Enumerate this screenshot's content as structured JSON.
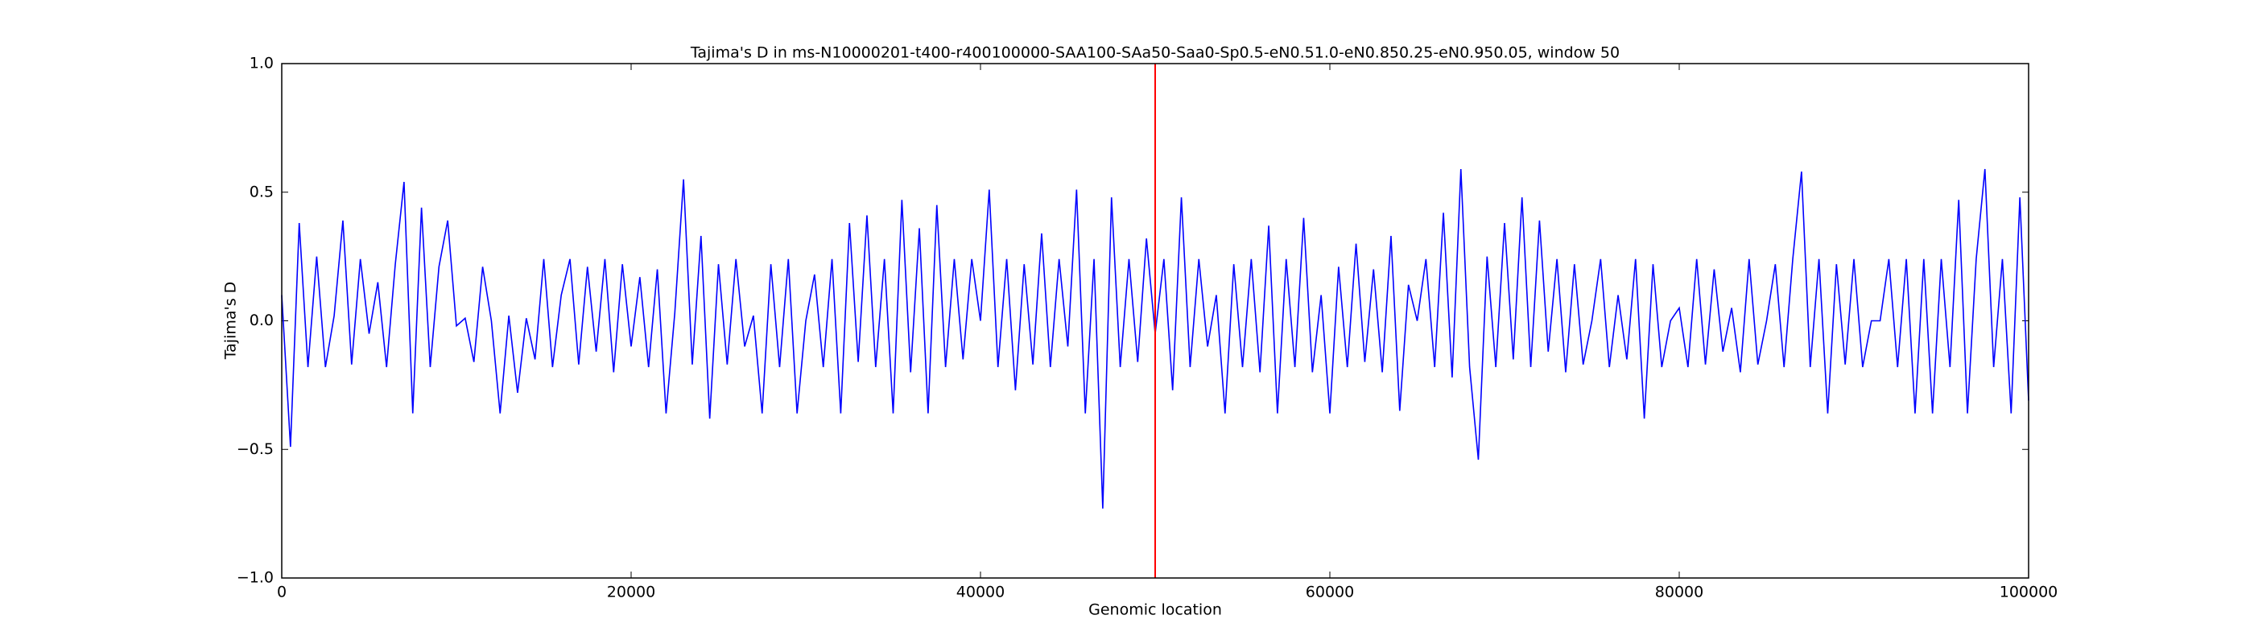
{
  "chart_data": {
    "type": "line",
    "title": "Tajima's D in ms-N10000201-t400-r400100000-SAA100-SAa50-Saa0-Sp0.5-eN0.51.0-eN0.850.25-eN0.950.05, window 50",
    "x_label": "Genomic location",
    "y_label": "Tajima's D",
    "x": [
      0,
      500,
      1000,
      1500,
      2000,
      2500,
      3000,
      3500,
      4000,
      4500,
      5000,
      5500,
      6000,
      6500,
      7000,
      7500,
      8000,
      8500,
      9000,
      9500,
      10000,
      10500,
      11000,
      11500,
      12000,
      12500,
      13000,
      13500,
      14000,
      14500,
      15000,
      15500,
      16000,
      16500,
      17000,
      17500,
      18000,
      18500,
      19000,
      19500,
      20000,
      20500,
      21000,
      21500,
      22000,
      22500,
      23000,
      23500,
      24000,
      24500,
      25000,
      25500,
      26000,
      26500,
      27000,
      27500,
      28000,
      28500,
      29000,
      29500,
      30000,
      30500,
      31000,
      31500,
      32000,
      32500,
      33000,
      33500,
      34000,
      34500,
      35000,
      35500,
      36000,
      36500,
      37000,
      37500,
      38000,
      38500,
      39000,
      39500,
      40000,
      40500,
      41000,
      41500,
      42000,
      42500,
      43000,
      43500,
      44000,
      44500,
      45000,
      45500,
      46000,
      46500,
      47000,
      47500,
      48000,
      48500,
      49000,
      49500,
      50000,
      50500,
      51000,
      51500,
      52000,
      52500,
      53000,
      53500,
      54000,
      54500,
      55000,
      55500,
      56000,
      56500,
      57000,
      57500,
      58000,
      58500,
      59000,
      59500,
      60000,
      60500,
      61000,
      61500,
      62000,
      62500,
      63000,
      63500,
      64000,
      64500,
      65000,
      65500,
      66000,
      66500,
      67000,
      67500,
      68000,
      68500,
      69000,
      69500,
      70000,
      70500,
      71000,
      71500,
      72000,
      72500,
      73000,
      73500,
      74000,
      74500,
      75000,
      75500,
      76000,
      76500,
      77000,
      77500,
      78000,
      78500,
      79000,
      79500,
      80000,
      80500,
      81000,
      81500,
      82000,
      82500,
      83000,
      83500,
      84000,
      84500,
      85000,
      85500,
      86000,
      86500,
      87000,
      87500,
      88000,
      88500,
      89000,
      89500,
      90000,
      90500,
      91000,
      91500,
      92000,
      92500,
      93000,
      93500,
      94000,
      94500,
      95000,
      95500,
      96000,
      96500,
      97000,
      97500,
      98000,
      98500,
      99000,
      99500,
      100000
    ],
    "series": [
      {
        "color": "#0000ff",
        "values": [
          0.1,
          -0.49,
          0.38,
          -0.18,
          0.25,
          -0.18,
          0.02,
          0.39,
          -0.17,
          0.24,
          -0.05,
          0.15,
          -0.18,
          0.22,
          0.54,
          -0.36,
          0.44,
          -0.18,
          0.21,
          0.39,
          -0.02,
          0.01,
          -0.16,
          0.21,
          0.0,
          -0.36,
          0.02,
          -0.28,
          0.01,
          -0.15,
          0.24,
          -0.18,
          0.1,
          0.24,
          -0.17,
          0.21,
          -0.12,
          0.24,
          -0.2,
          0.22,
          -0.1,
          0.17,
          -0.18,
          0.2,
          -0.36,
          0.03,
          0.55,
          -0.17,
          0.33,
          -0.38,
          0.22,
          -0.17,
          0.24,
          -0.1,
          0.02,
          -0.36,
          0.22,
          -0.18,
          0.24,
          -0.36,
          0.0,
          0.18,
          -0.18,
          0.24,
          -0.36,
          0.38,
          -0.16,
          0.41,
          -0.18,
          0.24,
          -0.36,
          0.47,
          -0.2,
          0.36,
          -0.36,
          0.45,
          -0.18,
          0.24,
          -0.15,
          0.24,
          0.0,
          0.51,
          -0.18,
          0.24,
          -0.27,
          0.22,
          -0.17,
          0.34,
          -0.18,
          0.24,
          -0.1,
          0.51,
          -0.36,
          0.24,
          -0.73,
          0.48,
          -0.18,
          0.24,
          -0.16,
          0.32,
          -0.05,
          0.24,
          -0.27,
          0.48,
          -0.18,
          0.24,
          -0.1,
          0.1,
          -0.36,
          0.22,
          -0.18,
          0.24,
          -0.2,
          0.37,
          -0.36,
          0.24,
          -0.18,
          0.4,
          -0.2,
          0.1,
          -0.36,
          0.21,
          -0.18,
          0.3,
          -0.16,
          0.2,
          -0.2,
          0.33,
          -0.35,
          0.14,
          0.0,
          0.24,
          -0.18,
          0.42,
          -0.22,
          0.59,
          -0.18,
          -0.54,
          0.25,
          -0.18,
          0.38,
          -0.15,
          0.48,
          -0.18,
          0.39,
          -0.12,
          0.24,
          -0.2,
          0.22,
          -0.17,
          0.0,
          0.24,
          -0.18,
          0.1,
          -0.15,
          0.24,
          -0.38,
          0.22,
          -0.18,
          0.0,
          0.05,
          -0.18,
          0.24,
          -0.17,
          0.2,
          -0.12,
          0.05,
          -0.2,
          0.24,
          -0.17,
          0.0,
          0.22,
          -0.18,
          0.24,
          0.58,
          -0.18,
          0.24,
          -0.36,
          0.22,
          -0.17,
          0.24,
          -0.18,
          0.0,
          0.0,
          0.24,
          -0.18,
          0.24,
          -0.36,
          0.24,
          -0.36,
          0.24,
          -0.18,
          0.47,
          -0.36,
          0.24,
          0.59,
          -0.18,
          0.24,
          -0.36,
          0.48,
          -0.31
        ]
      }
    ],
    "xlim": [
      0,
      100000
    ],
    "xticks": [
      0,
      20000,
      40000,
      60000,
      80000,
      100000
    ],
    "ylim": [
      -1,
      1
    ],
    "yticks": [
      {
        "value": -1,
        "label": "−1.0"
      },
      {
        "value": -0.5,
        "label": "−0.5"
      },
      {
        "value": 0,
        "label": "0.0"
      },
      0.5,
      {
        "value": 1,
        "label": "1.0"
      }
    ],
    "grid": false,
    "vline": {
      "x": 50000,
      "color": "#ff0000"
    }
  }
}
